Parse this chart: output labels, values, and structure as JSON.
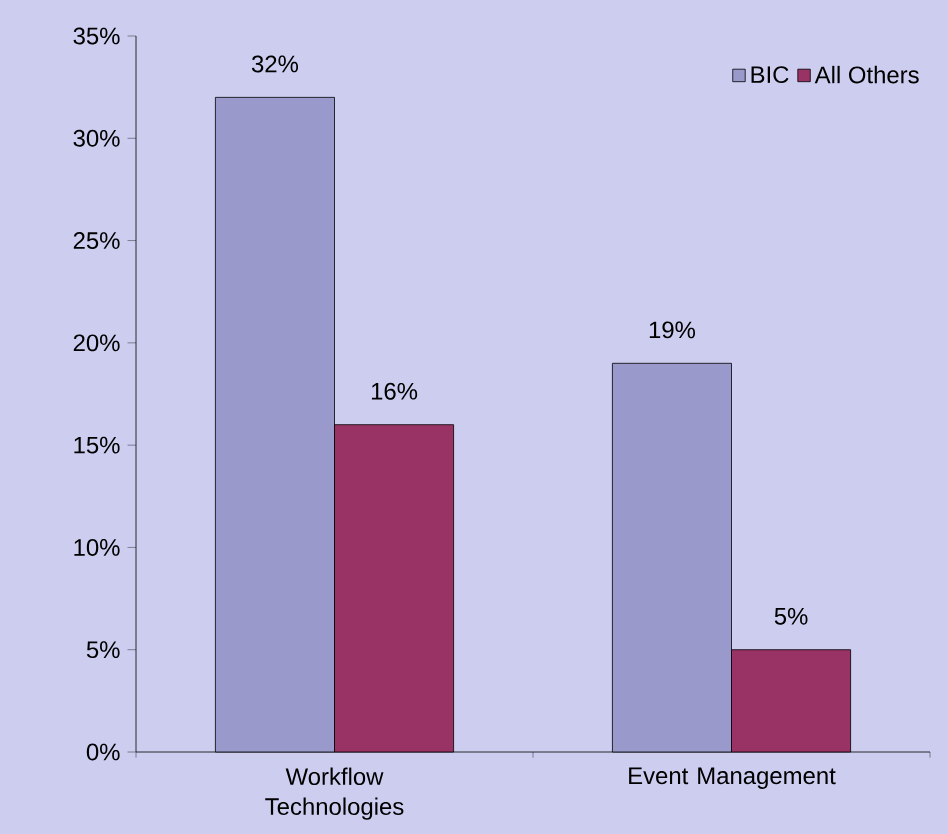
{
  "chart_data": {
    "type": "bar",
    "categories": [
      "Workflow Technologies",
      "Event Management"
    ],
    "series": [
      {
        "name": "BIC",
        "color": "#9999cc",
        "values": [
          32,
          19
        ],
        "value_labels": [
          "32%",
          "19%"
        ]
      },
      {
        "name": "All Others",
        "color": "#993366",
        "values": [
          16,
          5
        ],
        "value_labels": [
          "16%",
          "5%"
        ]
      }
    ],
    "ylim": [
      0,
      35
    ],
    "yticks": [
      {
        "value": 0,
        "label": "0%"
      },
      {
        "value": 5,
        "label": "5%"
      },
      {
        "value": 10,
        "label": "10%"
      },
      {
        "value": 15,
        "label": "15%"
      },
      {
        "value": 20,
        "label": "20%"
      },
      {
        "value": 25,
        "label": "25%"
      },
      {
        "value": 30,
        "label": "30%"
      },
      {
        "value": 35,
        "label": "35%"
      }
    ],
    "legend": "top right",
    "grid": false
  }
}
